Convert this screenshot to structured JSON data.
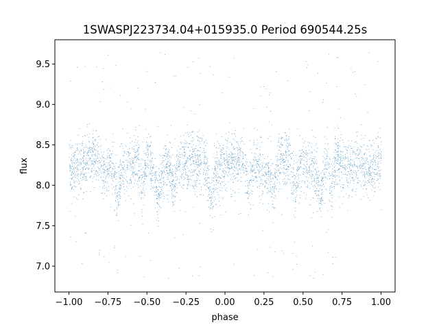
{
  "chart_data": {
    "type": "scatter",
    "title": "1SWASPJ223734.04+015935.0 Period 690544.25s",
    "xlabel": "phase",
    "ylabel": "flux",
    "xlim": [
      -1.09,
      1.09
    ],
    "ylim": [
      6.68,
      9.8
    ],
    "x_ticks": [
      -1.0,
      -0.75,
      -0.5,
      -0.25,
      0.0,
      0.25,
      0.5,
      0.75,
      1.0
    ],
    "x_tick_labels": [
      "−1.00",
      "−0.75",
      "−0.50",
      "−0.25",
      "0.00",
      "0.25",
      "0.50",
      "0.75",
      "1.00"
    ],
    "y_ticks": [
      7.0,
      7.5,
      8.0,
      8.5,
      9.0,
      9.5
    ],
    "y_tick_labels": [
      "7.0",
      "7.5",
      "8.0",
      "8.5",
      "9.0",
      "9.5"
    ],
    "grid": false,
    "legend": "none",
    "marker_color": "#1f77b4",
    "series": [
      {
        "x_range": [
          -1.0,
          1.0
        ],
        "mean_flux": 8.25,
        "typical_scatter": 0.17,
        "flux_min": 6.82,
        "flux_max": 9.65,
        "dip_phases": [
          -0.69,
          -0.53,
          -0.43,
          -0.33,
          -0.09,
          0.15,
          0.31,
          0.45,
          0.61,
          0.68
        ]
      }
    ]
  }
}
